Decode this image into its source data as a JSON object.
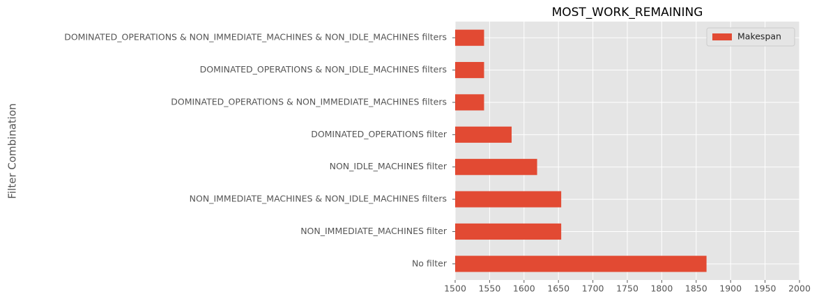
{
  "chart_data": {
    "type": "barh",
    "title": "MOST_WORK_REMAINING",
    "ylabel": "Filter Combination",
    "categories": [
      "DOMINATED_OPERATIONS & NON_IMMEDIATE_MACHINES & NON_IDLE_MACHINES filters",
      "DOMINATED_OPERATIONS & NON_IDLE_MACHINES filters",
      "DOMINATED_OPERATIONS & NON_IMMEDIATE_MACHINES filters",
      "DOMINATED_OPERATIONS filter",
      "NON_IDLE_MACHINES filter",
      "NON_IMMEDIATE_MACHINES & NON_IDLE_MACHINES filters",
      "NON_IMMEDIATE_MACHINES filter",
      "No filter"
    ],
    "series": [
      {
        "name": "Makespan",
        "color": "#e24a33",
        "values": [
          1542,
          1542,
          1542,
          1582,
          1619,
          1654,
          1654,
          1865
        ]
      }
    ],
    "xlim": [
      1500,
      2000
    ],
    "xticks": [
      1500,
      1550,
      1600,
      1650,
      1700,
      1750,
      1800,
      1850,
      1900,
      1950,
      2000
    ],
    "grid": true,
    "legend": "upper right"
  }
}
